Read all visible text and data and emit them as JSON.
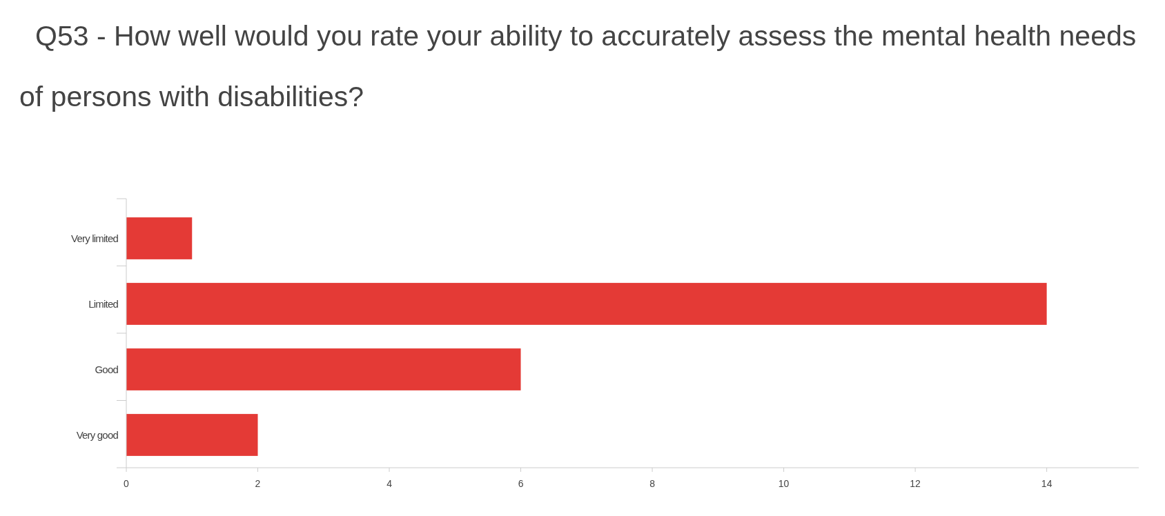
{
  "chart_data": {
    "type": "bar",
    "orientation": "horizontal",
    "title": "Q53 - How well would you rate your ability to accurately assess the mental health needs of persons with disabilities?",
    "categories": [
      "Very limited",
      "Limited",
      "Good",
      "Very good"
    ],
    "values": [
      1,
      14,
      6,
      2
    ],
    "color": "#e43a36",
    "xlim": [
      0,
      15.4
    ],
    "xticks": [
      0,
      2,
      4,
      6,
      8,
      10,
      12,
      14
    ],
    "grid": false
  }
}
